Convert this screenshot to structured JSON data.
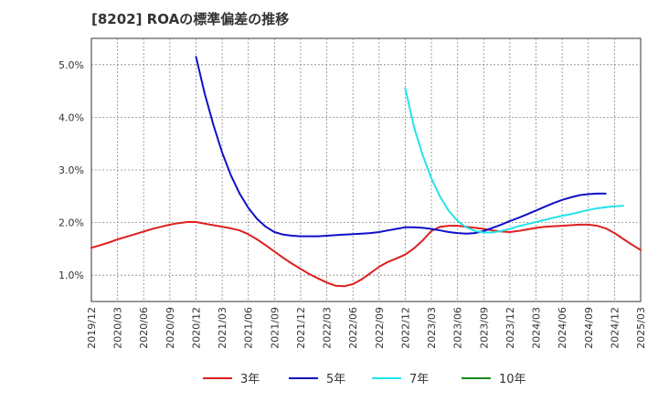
{
  "chart_data": {
    "type": "line",
    "title": "[8202]  ROAの標準偏差の推移",
    "xlabel": "",
    "ylabel": "",
    "ylim": [
      0.5,
      5.5
    ],
    "yticks": [
      1.0,
      2.0,
      3.0,
      4.0,
      5.0
    ],
    "ytick_labels": [
      "1.0%",
      "2.0%",
      "3.0%",
      "4.0%",
      "5.0%"
    ],
    "xticks": [
      "2019/12",
      "2020/03",
      "2020/06",
      "2020/09",
      "2020/12",
      "2021/03",
      "2021/06",
      "2021/09",
      "2021/12",
      "2022/03",
      "2022/06",
      "2022/09",
      "2022/12",
      "2023/03",
      "2023/06",
      "2023/09",
      "2023/12",
      "2024/03",
      "2024/06",
      "2024/09",
      "2024/12",
      "2025/03"
    ],
    "grid": true,
    "legend_position": "bottom",
    "series": [
      {
        "name": "3年",
        "color": "#dd1f1f",
        "start_index": 0,
        "values": [
          1.52,
          1.57,
          1.62,
          1.68,
          1.73,
          1.78,
          1.83,
          1.88,
          1.92,
          1.96,
          1.99,
          2.01,
          2.01,
          1.98,
          1.95,
          1.92,
          1.89,
          1.85,
          1.78,
          1.68,
          1.57,
          1.45,
          1.33,
          1.22,
          1.12,
          1.02,
          0.94,
          0.86,
          0.8,
          0.79,
          0.83,
          0.92,
          1.04,
          1.16,
          1.25,
          1.32,
          1.39,
          1.51,
          1.66,
          1.84,
          1.92,
          1.94,
          1.94,
          1.92,
          1.9,
          1.88,
          1.85,
          1.83,
          1.82,
          1.84,
          1.87,
          1.9,
          1.92,
          1.93,
          1.94,
          1.95,
          1.96,
          1.96,
          1.94,
          1.89,
          1.8,
          1.69,
          1.58,
          1.48
        ]
      },
      {
        "name": "5年",
        "color": "#1010c8",
        "start_index": 12,
        "values": [
          5.15,
          4.45,
          3.85,
          3.33,
          2.9,
          2.55,
          2.28,
          2.07,
          1.92,
          1.82,
          1.77,
          1.75,
          1.74,
          1.74,
          1.74,
          1.75,
          1.76,
          1.77,
          1.78,
          1.79,
          1.8,
          1.82,
          1.85,
          1.88,
          1.91,
          1.91,
          1.9,
          1.88,
          1.85,
          1.82,
          1.8,
          1.79,
          1.8,
          1.84,
          1.9,
          1.96,
          2.03,
          2.09,
          2.16,
          2.23,
          2.3,
          2.37,
          2.43,
          2.48,
          2.52,
          2.54,
          2.55,
          2.55
        ]
      },
      {
        "name": "7年",
        "color": "#22e4ea",
        "start_index": 36,
        "values": [
          4.55,
          3.82,
          3.28,
          2.84,
          2.49,
          2.22,
          2.03,
          1.91,
          1.84,
          1.81,
          1.81,
          1.84,
          1.88,
          1.93,
          1.97,
          2.01,
          2.05,
          2.09,
          2.13,
          2.16,
          2.2,
          2.24,
          2.27,
          2.29,
          2.31,
          2.32
        ]
      },
      {
        "name": "10年",
        "color": "#1a8a1a",
        "start_index": 0,
        "values": []
      }
    ]
  }
}
